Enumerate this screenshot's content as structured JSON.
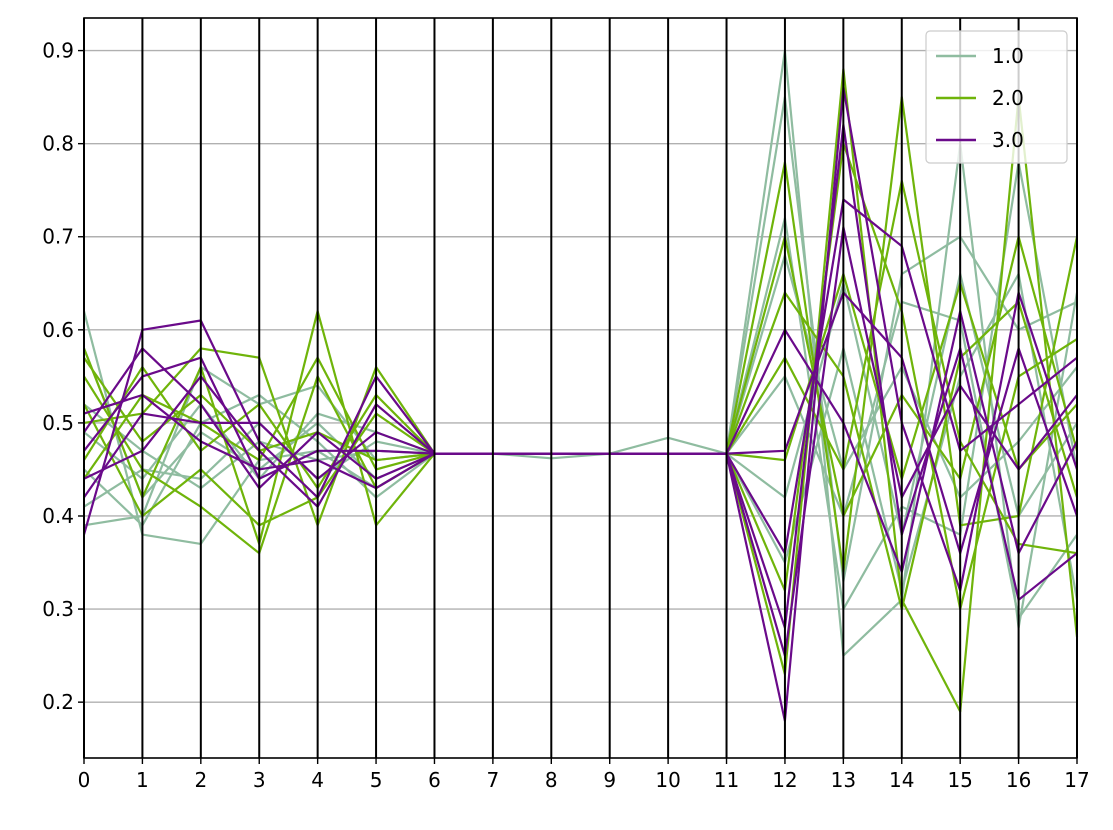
{
  "chart_data": {
    "type": "parallel_coordinates",
    "x_axes": [
      0,
      1,
      2,
      3,
      4,
      5,
      6,
      7,
      8,
      9,
      10,
      11,
      12,
      13,
      14,
      15,
      16,
      17
    ],
    "xlim": [
      0,
      17
    ],
    "ylim": [
      0.14,
      0.935
    ],
    "y_ticks": [
      0.2,
      0.3,
      0.4,
      0.5,
      0.6,
      0.7,
      0.8,
      0.9
    ],
    "y_tick_labels": [
      "0.2",
      "0.3",
      "0.4",
      "0.5",
      "0.6",
      "0.7",
      "0.8",
      "0.9"
    ],
    "x_tick_labels": [
      "0",
      "1",
      "2",
      "3",
      "4",
      "5",
      "6",
      "7",
      "8",
      "9",
      "10",
      "11",
      "12",
      "13",
      "14",
      "15",
      "16",
      "17"
    ],
    "grid": "horizontal",
    "legend_position": "top-right",
    "series": [
      {
        "name": "1.0",
        "color": "#8fbca0",
        "lines": [
          [
            0.62,
            0.38,
            0.37,
            0.46,
            0.47,
            0.43,
            0.467,
            0.467,
            0.462,
            0.467,
            0.484,
            0.467,
            0.9,
            0.25,
            0.31,
            0.8,
            0.28,
            0.64
          ],
          [
            0.39,
            0.4,
            0.56,
            0.52,
            0.54,
            0.46,
            0.467,
            0.467,
            0.467,
            0.467,
            0.467,
            0.467,
            0.85,
            0.33,
            0.66,
            0.7,
            0.6,
            0.63
          ],
          [
            0.41,
            0.45,
            0.44,
            0.5,
            0.44,
            0.48,
            0.467,
            0.467,
            0.467,
            0.467,
            0.467,
            0.467,
            0.72,
            0.3,
            0.41,
            0.38,
            0.78,
            0.45
          ],
          [
            0.58,
            0.42,
            0.49,
            0.45,
            0.5,
            0.44,
            0.467,
            0.467,
            0.467,
            0.467,
            0.467,
            0.467,
            0.55,
            0.4,
            0.63,
            0.61,
            0.29,
            0.38
          ],
          [
            0.52,
            0.47,
            0.43,
            0.48,
            0.46,
            0.47,
            0.467,
            0.467,
            0.467,
            0.467,
            0.467,
            0.467,
            0.35,
            0.58,
            0.32,
            0.55,
            0.66,
            0.31
          ],
          [
            0.45,
            0.39,
            0.5,
            0.53,
            0.48,
            0.42,
            0.467,
            0.467,
            0.467,
            0.467,
            0.467,
            0.467,
            0.68,
            0.45,
            0.56,
            0.42,
            0.48,
            0.56
          ],
          [
            0.49,
            0.44,
            0.52,
            0.44,
            0.51,
            0.49,
            0.467,
            0.467,
            0.467,
            0.467,
            0.467,
            0.467,
            0.42,
            0.65,
            0.38,
            0.66,
            0.4,
            0.5
          ]
        ]
      },
      {
        "name": "2.0",
        "color": "#6fb40a",
        "lines": [
          [
            0.58,
            0.42,
            0.56,
            0.37,
            0.62,
            0.39,
            0.467,
            0.467,
            0.467,
            0.467,
            0.467,
            0.467,
            0.23,
            0.88,
            0.31,
            0.19,
            0.85,
            0.27
          ],
          [
            0.5,
            0.51,
            0.58,
            0.57,
            0.39,
            0.56,
            0.467,
            0.467,
            0.467,
            0.467,
            0.467,
            0.467,
            0.78,
            0.34,
            0.85,
            0.39,
            0.4,
            0.7
          ],
          [
            0.55,
            0.45,
            0.41,
            0.36,
            0.55,
            0.43,
            0.467,
            0.467,
            0.467,
            0.467,
            0.467,
            0.467,
            0.64,
            0.55,
            0.3,
            0.57,
            0.63,
            0.42
          ],
          [
            0.46,
            0.56,
            0.47,
            0.52,
            0.43,
            0.53,
            0.467,
            0.467,
            0.467,
            0.467,
            0.467,
            0.467,
            0.32,
            0.8,
            0.62,
            0.3,
            0.55,
            0.59
          ],
          [
            0.57,
            0.48,
            0.53,
            0.47,
            0.49,
            0.46,
            0.467,
            0.467,
            0.467,
            0.467,
            0.467,
            0.467,
            0.57,
            0.45,
            0.76,
            0.48,
            0.37,
            0.36
          ],
          [
            0.52,
            0.4,
            0.45,
            0.39,
            0.42,
            0.51,
            0.467,
            0.467,
            0.467,
            0.467,
            0.467,
            0.467,
            0.46,
            0.66,
            0.44,
            0.65,
            0.45,
            0.52
          ],
          [
            0.44,
            0.53,
            0.5,
            0.46,
            0.57,
            0.45,
            0.467,
            0.467,
            0.467,
            0.467,
            0.467,
            0.467,
            0.7,
            0.4,
            0.53,
            0.44,
            0.7,
            0.47
          ]
        ]
      },
      {
        "name": "3.0",
        "color": "#6a0a8a",
        "lines": [
          [
            0.38,
            0.6,
            0.61,
            0.48,
            0.42,
            0.55,
            0.467,
            0.467,
            0.467,
            0.467,
            0.467,
            0.467,
            0.18,
            0.86,
            0.5,
            0.32,
            0.64,
            0.45
          ],
          [
            0.47,
            0.55,
            0.57,
            0.44,
            0.47,
            0.47,
            0.467,
            0.467,
            0.467,
            0.467,
            0.467,
            0.467,
            0.28,
            0.82,
            0.38,
            0.58,
            0.31,
            0.36
          ],
          [
            0.42,
            0.51,
            0.5,
            0.5,
            0.44,
            0.49,
            0.467,
            0.467,
            0.467,
            0.467,
            0.467,
            0.467,
            0.36,
            0.74,
            0.69,
            0.47,
            0.52,
            0.57
          ],
          [
            0.49,
            0.58,
            0.52,
            0.43,
            0.49,
            0.44,
            0.467,
            0.467,
            0.467,
            0.467,
            0.467,
            0.467,
            0.6,
            0.5,
            0.34,
            0.62,
            0.36,
            0.48
          ],
          [
            0.44,
            0.47,
            0.55,
            0.47,
            0.41,
            0.52,
            0.467,
            0.467,
            0.467,
            0.467,
            0.467,
            0.467,
            0.47,
            0.64,
            0.57,
            0.36,
            0.58,
            0.4
          ],
          [
            0.51,
            0.53,
            0.48,
            0.45,
            0.46,
            0.43,
            0.467,
            0.467,
            0.467,
            0.467,
            0.467,
            0.467,
            0.25,
            0.71,
            0.42,
            0.54,
            0.45,
            0.53
          ]
        ]
      }
    ]
  }
}
